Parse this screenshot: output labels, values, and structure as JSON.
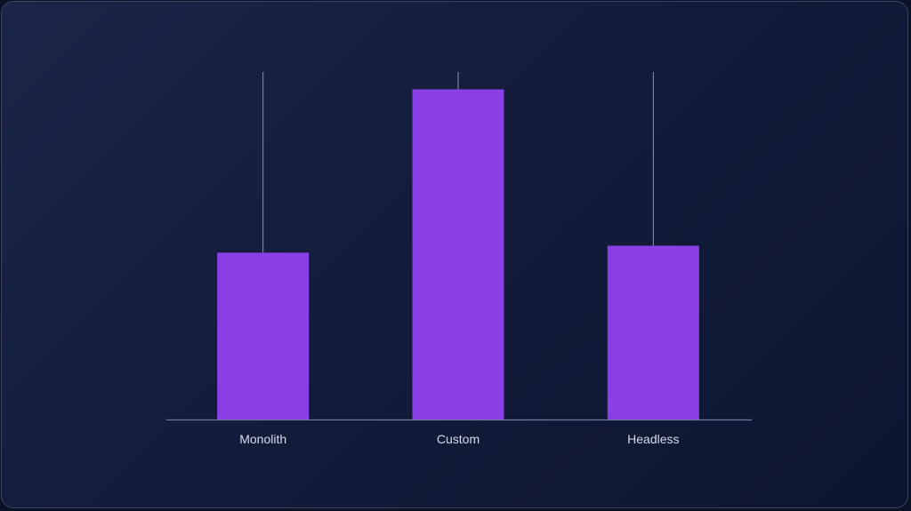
{
  "chart_data": {
    "type": "bar",
    "categories": [
      "Monolith",
      "Custom",
      "Headless"
    ],
    "values": [
      48,
      95,
      50
    ],
    "guide_top": 100,
    "ylim": [
      0,
      100
    ],
    "grid": false,
    "title": "",
    "xlabel": "",
    "ylabel": "",
    "colors": {
      "bar": "#8b3fe6",
      "guide": "#8a94b8",
      "baseline": "#6f7aa3"
    }
  }
}
